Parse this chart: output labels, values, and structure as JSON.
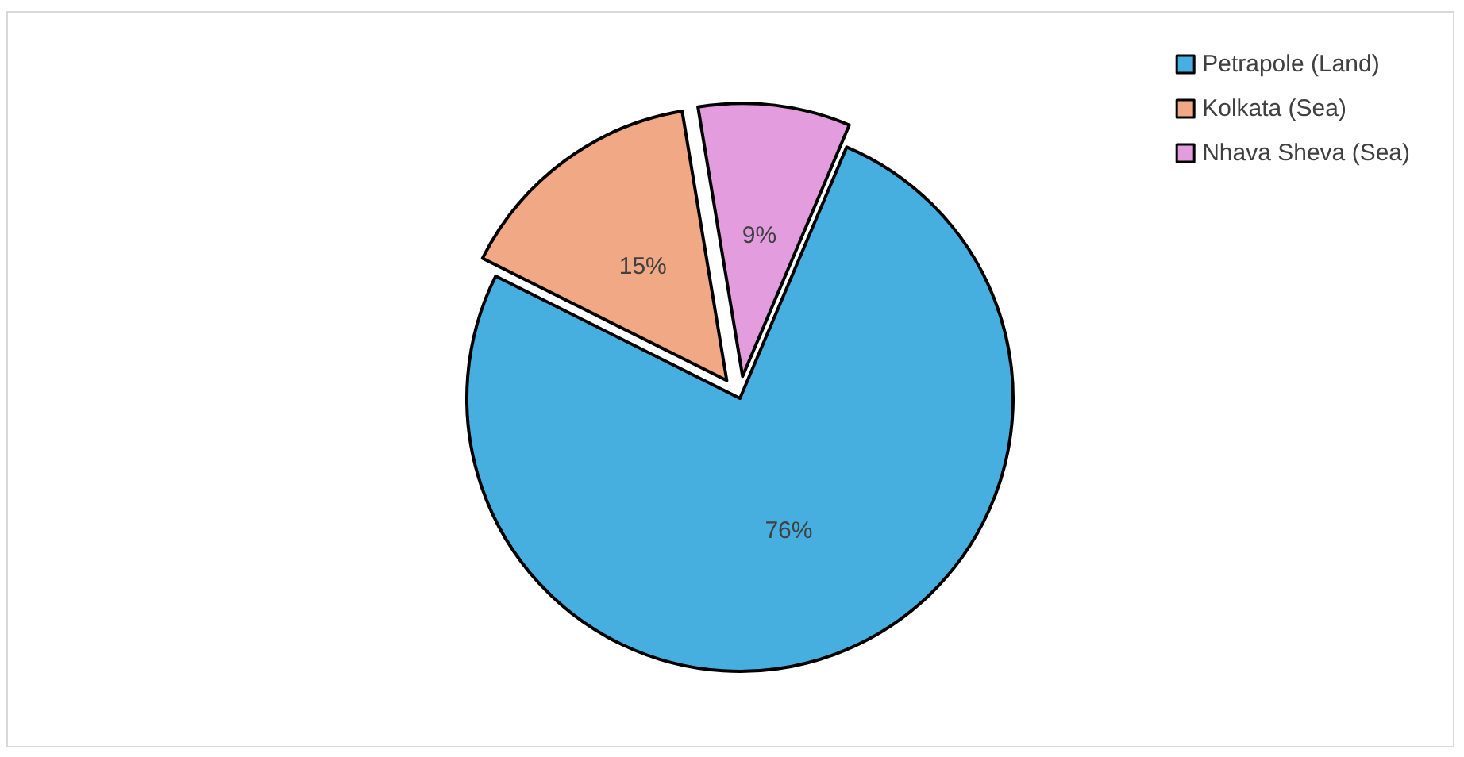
{
  "chart_data": {
    "type": "pie",
    "categories": [
      "Petrapole (Land)",
      "Kolkata (Sea)",
      "Nhava Sheva (Sea)"
    ],
    "values": [
      76,
      15,
      9
    ],
    "colors": [
      "#46afdf",
      "#f1a985",
      "#e39ddf"
    ],
    "value_labels": [
      "76%",
      "15%",
      "9%"
    ],
    "legend": "top right"
  }
}
